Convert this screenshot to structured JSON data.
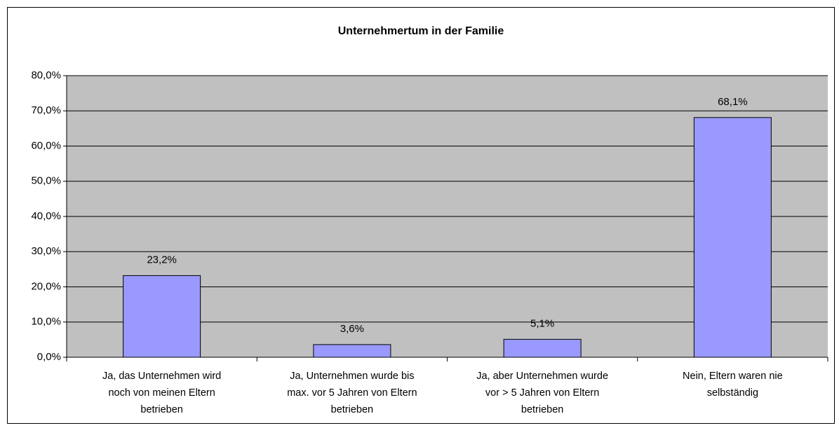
{
  "chart_data": {
    "type": "bar",
    "title": "Unternehmertum in der Familie",
    "categories": [
      [
        "Ja, das Unternehmen wird",
        "noch von meinen Eltern",
        "betrieben"
      ],
      [
        "Ja, Unternehmen wurde bis",
        "max. vor 5 Jahren von Eltern",
        "betrieben"
      ],
      [
        "Ja, aber Unternehmen wurde",
        "vor > 5 Jahren von Eltern",
        "betrieben"
      ],
      [
        "Nein, Eltern waren nie",
        "selbständig"
      ]
    ],
    "values": [
      23.2,
      3.6,
      5.1,
      68.1
    ],
    "value_labels": [
      "23,2%",
      "3,6%",
      "5,1%",
      "68,1%"
    ],
    "color": "#9999ff",
    "ylim": [
      0,
      80
    ],
    "yticks": [
      {
        "value": 0,
        "label": "0,0%"
      },
      {
        "value": 10,
        "label": "10,0%"
      },
      {
        "value": 20,
        "label": "20,0%"
      },
      {
        "value": 30,
        "label": "30,0%"
      },
      {
        "value": 40,
        "label": "40,0%"
      },
      {
        "value": 50,
        "label": "50,0%"
      },
      {
        "value": 60,
        "label": "60,0%"
      },
      {
        "value": 70,
        "label": "70,0%"
      },
      {
        "value": 80,
        "label": "80,0%"
      }
    ],
    "grid": true
  }
}
